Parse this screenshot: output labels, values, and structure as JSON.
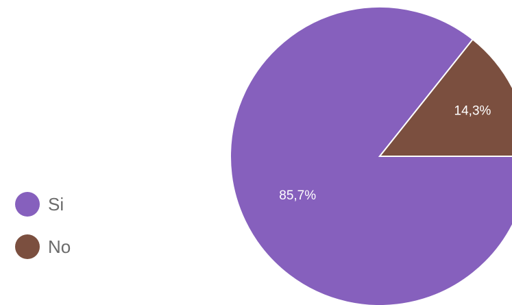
{
  "chart_data": {
    "type": "pie",
    "categories": [
      "Si",
      "No"
    ],
    "values": [
      85.7,
      14.3
    ],
    "value_labels": [
      "85,7%",
      "14,3%"
    ],
    "colors": [
      "#8660bd",
      "#7b4f3f"
    ],
    "legend_position": "left"
  }
}
